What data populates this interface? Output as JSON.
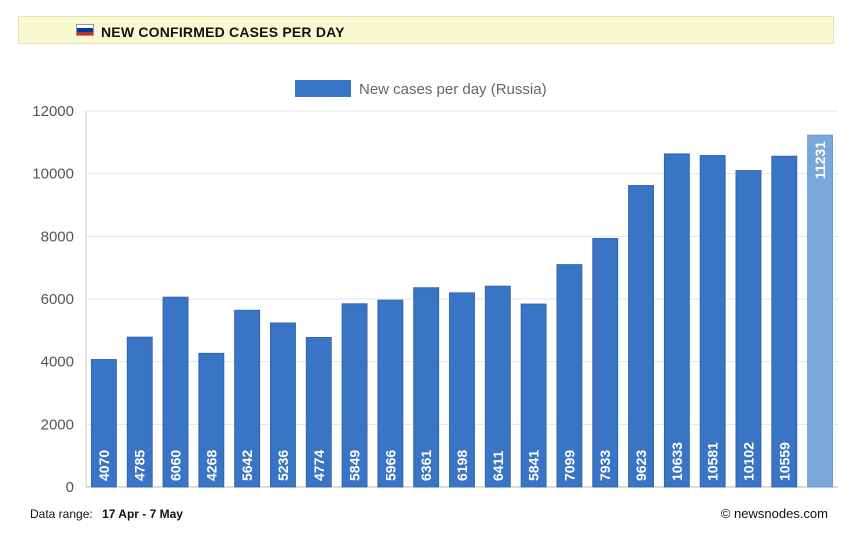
{
  "header": {
    "title": "NEW CONFIRMED CASES PER DAY",
    "flag": {
      "name": "russia-flag-icon",
      "colors": [
        "#ffffff",
        "#0039a6",
        "#d52b1e"
      ]
    }
  },
  "chart_data": {
    "type": "bar",
    "legend": {
      "label": "New cases per day (Russia)",
      "placement": "top-center"
    },
    "series": [
      {
        "name": "New cases per day (Russia)",
        "values": [
          4070,
          4785,
          6060,
          4268,
          5642,
          5236,
          4774,
          5849,
          5966,
          6361,
          6198,
          6411,
          5841,
          7099,
          7933,
          9623,
          10633,
          10581,
          10102,
          10559,
          11231
        ],
        "color": "#3a74c4",
        "last_bar_color": "#7aa7dc"
      }
    ],
    "yticks": [
      "0",
      "2000",
      "4000",
      "6000",
      "8000",
      "10000",
      "12000"
    ],
    "ylim": [
      0,
      12000
    ],
    "grid": true,
    "data_labels": "vertical-inside-bar"
  },
  "footer": {
    "range_label": "Data range:",
    "range_value": "17 Apr - 7 May",
    "credit": "© newsnodes.com"
  }
}
